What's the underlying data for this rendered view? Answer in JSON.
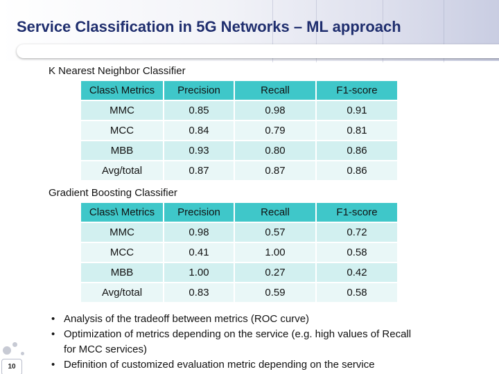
{
  "slide": {
    "title": "Service Classification in 5G Networks – ML approach",
    "page_number": "10"
  },
  "tables": [
    {
      "label": "K Nearest Neighbor Classifier",
      "headers": [
        "Class\\ Metrics",
        "Precision",
        "Recall",
        "F1-score"
      ],
      "rows": [
        [
          "MMC",
          "0.85",
          "0.98",
          "0.91"
        ],
        [
          "MCC",
          "0.84",
          "0.79",
          "0.81"
        ],
        [
          "MBB",
          "0.93",
          "0.80",
          "0.86"
        ],
        [
          "Avg/total",
          "0.87",
          "0.87",
          "0.86"
        ]
      ]
    },
    {
      "label": "Gradient Boosting Classifier",
      "headers": [
        "Class\\ Metrics",
        "Precision",
        "Recall",
        "F1-score"
      ],
      "rows": [
        [
          "MMC",
          "0.98",
          "0.57",
          "0.72"
        ],
        [
          "MCC",
          "0.41",
          "1.00",
          "0.58"
        ],
        [
          "MBB",
          "1.00",
          "0.27",
          "0.42"
        ],
        [
          "Avg/total",
          "0.83",
          "0.59",
          "0.58"
        ]
      ]
    }
  ],
  "bullets": [
    "Analysis of the tradeoff between metrics (ROC curve)",
    "Optimization of metrics depending on the service (e.g. high values of Recall for MCC services)",
    "Definition of customized evaluation metric depending on the service"
  ],
  "colors": {
    "title": "#1f2e6e",
    "header_cell": "#3fc7c9",
    "row_odd": "#d2f0f0",
    "row_even": "#e9f7f7"
  }
}
